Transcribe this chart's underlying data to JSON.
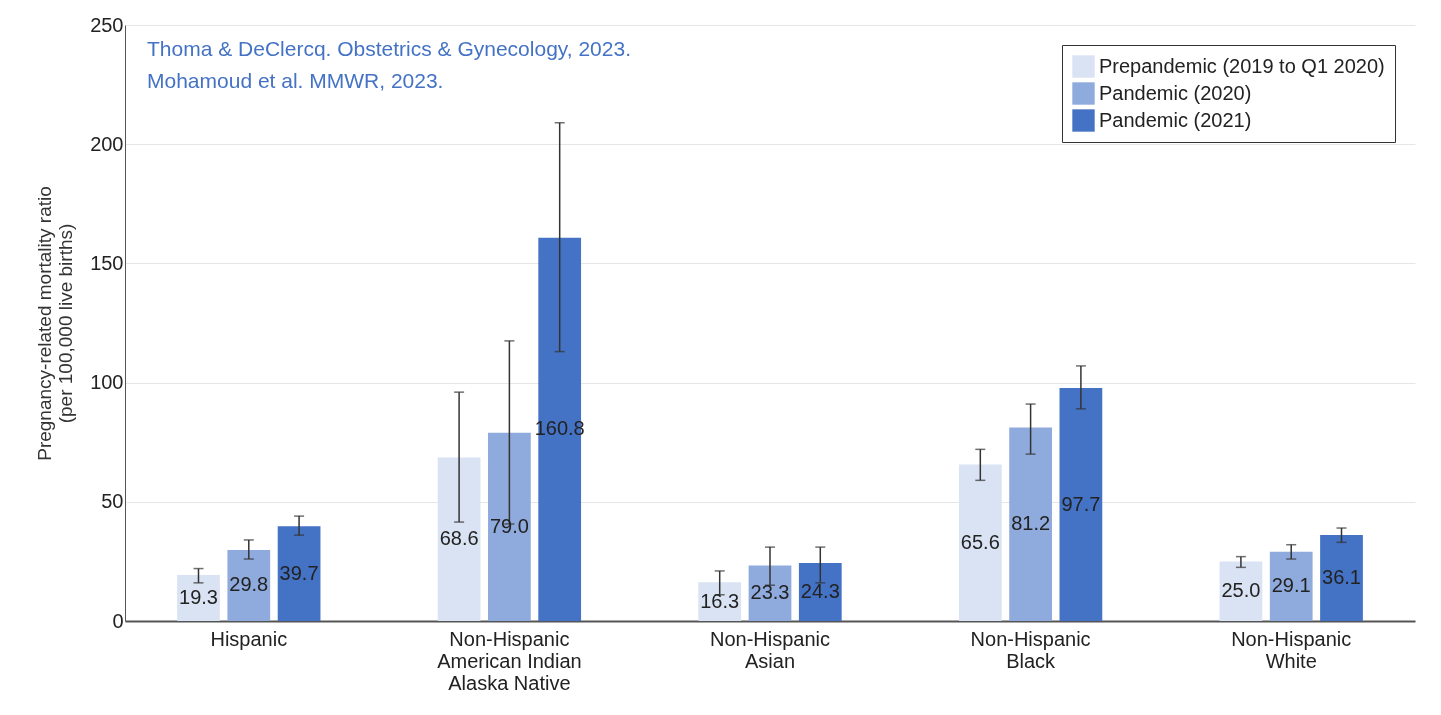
{
  "chart_data": {
    "type": "bar",
    "ylabel": "Pregnancy-related mortality ratio\n(per 100,000 live births)",
    "categories": [
      "Hispanic",
      "Non-Hispanic\nAmerican Indian\nAlaska Native",
      "Non-Hispanic\nAsian",
      "Non-Hispanic\nBlack",
      "Non-Hispanic\nWhite"
    ],
    "series": [
      {
        "name": "Prepandemic (2019 to Q1 2020)",
        "color": "#dae3f3",
        "values": [
          19.3,
          68.6,
          16.3,
          65.6,
          25.0
        ],
        "value_labels": [
          "19.3",
          "68.6",
          "16.3",
          "65.6",
          "25.0"
        ],
        "errors": [
          [
            16,
            22
          ],
          [
            41.5,
            96
          ],
          [
            11,
            21
          ],
          [
            59,
            72
          ],
          [
            22.5,
            27
          ]
        ]
      },
      {
        "name": "Pandemic (2020)",
        "color": "#8faadc",
        "values": [
          29.8,
          79.0,
          23.3,
          81.2,
          29.1
        ],
        "value_labels": [
          "29.8",
          "79.0",
          "23.3",
          "81.2",
          "29.1"
        ],
        "errors": [
          [
            26,
            34
          ],
          [
            40.7,
            117.5
          ],
          [
            15,
            31
          ],
          [
            70,
            91
          ],
          [
            26,
            32
          ]
        ]
      },
      {
        "name": "Pandemic (2021)",
        "color": "#4472c4",
        "values": [
          39.7,
          160.8,
          24.3,
          97.7,
          36.1
        ],
        "value_labels": [
          "39.7",
          "160.8",
          "24.3",
          "97.7",
          "36.1"
        ],
        "errors": [
          [
            36,
            44
          ],
          [
            113,
            209
          ],
          [
            16,
            31
          ],
          [
            89,
            107
          ],
          [
            33,
            39
          ]
        ]
      }
    ],
    "ylim": [
      0,
      250
    ],
    "yticks": [
      0,
      50,
      100,
      150,
      200,
      250
    ],
    "grid": "y",
    "legend": "top right",
    "annotations": [
      "Thoma & DeClercq. Obstetrics & Gynecology, 2023.",
      "Mohamoud et al. MMWR, 2023."
    ]
  }
}
